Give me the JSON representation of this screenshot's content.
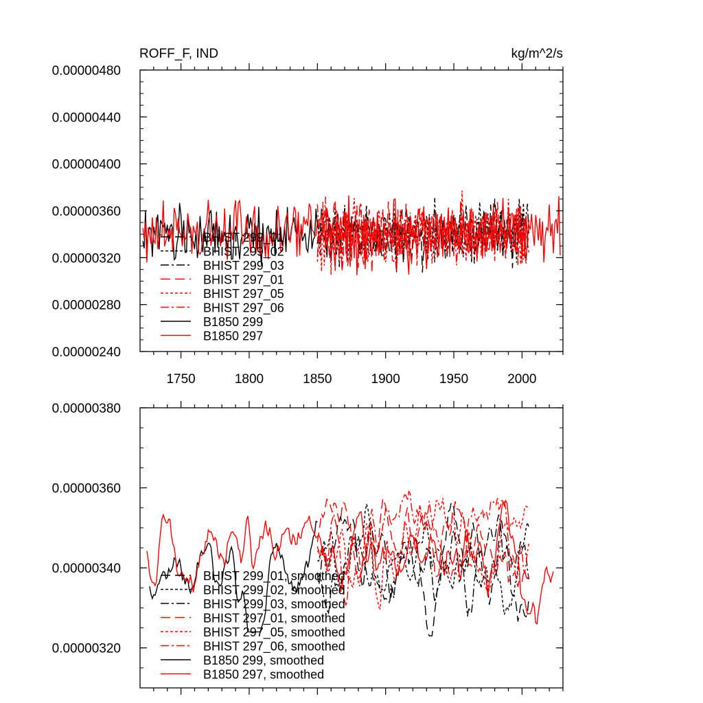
{
  "chart_data": [
    {
      "type": "line",
      "title": "ROFF_F, IND",
      "units": "kg/m^2/s",
      "xlabel": "",
      "ylabel": "",
      "xlim": [
        1720,
        2030
      ],
      "ylim": [
        2.4e-06,
        4.8e-06
      ],
      "x_ticks": [
        "1750",
        "1800",
        "1850",
        "1900",
        "1950",
        "2000"
      ],
      "y_ticks": [
        "0.00000240",
        "0.00000280",
        "0.00000320",
        "0.00000360",
        "0.00000400",
        "0.00000440",
        "0.00000480"
      ],
      "grid": false,
      "legend_position": "lower-left",
      "series": [
        {
          "name": "BHIST 299_01",
          "x_range": [
            1850,
            2005
          ],
          "mean": 3.4e-06,
          "amp": 3.6e-07,
          "seed": 11,
          "color": "#000000",
          "dash": "14,7"
        },
        {
          "name": "BHIST 299_02",
          "x_range": [
            1850,
            2005
          ],
          "mean": 3.4e-06,
          "amp": 3.6e-07,
          "seed": 12,
          "color": "#000000",
          "dash": "4,3"
        },
        {
          "name": "BHIST 299_03",
          "x_range": [
            1850,
            2005
          ],
          "mean": 3.4e-06,
          "amp": 3.6e-07,
          "seed": 13,
          "color": "#000000",
          "dash": "12,4,3,4"
        },
        {
          "name": "BHIST 297_01",
          "x_range": [
            1850,
            2005
          ],
          "mean": 3.4e-06,
          "amp": 4e-07,
          "seed": 21,
          "color": "#ff0000",
          "dash": "14,7"
        },
        {
          "name": "BHIST 297_05",
          "x_range": [
            1850,
            2005
          ],
          "mean": 3.4e-06,
          "amp": 4e-07,
          "seed": 22,
          "color": "#ff0000",
          "dash": "4,3"
        },
        {
          "name": "BHIST 297_06",
          "x_range": [
            1850,
            2005
          ],
          "mean": 3.4e-06,
          "amp": 4e-07,
          "seed": 23,
          "color": "#ff0000",
          "dash": "12,4,3,4"
        },
        {
          "name": "B1850 299",
          "x_range": [
            1722,
            1850
          ],
          "mean": 3.4e-06,
          "amp": 3.3e-07,
          "seed": 31,
          "color": "#000000",
          "dash": ""
        },
        {
          "name": "B1850 297",
          "x_range": [
            1722,
            2028
          ],
          "mean": 3.4e-06,
          "amp": 4e-07,
          "seed": 41,
          "color": "#ff0000",
          "dash": ""
        }
      ]
    },
    {
      "type": "line",
      "title": "",
      "xlabel": "",
      "ylabel": "",
      "xlim": [
        1720,
        2030
      ],
      "ylim": [
        3.1e-06,
        3.8e-06
      ],
      "y_ticks": [
        "0.00000320",
        "0.00000340",
        "0.00000360",
        "0.00000380"
      ],
      "grid": false,
      "legend_position": "lower-left",
      "series": [
        {
          "name": "BHIST 299_01, smoothed",
          "x_range": [
            1850,
            2005
          ],
          "mean": 3.4e-06,
          "amp": 1.7e-07,
          "seed": 51,
          "color": "#000000",
          "dash": "14,7"
        },
        {
          "name": "BHIST 299_02, smoothed",
          "x_range": [
            1850,
            2005
          ],
          "mean": 3.4e-06,
          "amp": 1.7e-07,
          "seed": 52,
          "color": "#000000",
          "dash": "4,3"
        },
        {
          "name": "BHIST 299_03, smoothed",
          "x_range": [
            1850,
            2005
          ],
          "mean": 3.4e-06,
          "amp": 1.7e-07,
          "seed": 53,
          "color": "#000000",
          "dash": "12,4,3,4"
        },
        {
          "name": "BHIST 297_01, smoothed",
          "x_range": [
            1850,
            2005
          ],
          "mean": 3.46e-06,
          "amp": 1.7e-07,
          "seed": 61,
          "color": "#ff0000",
          "dash": "14,7"
        },
        {
          "name": "BHIST 297_05, smoothed",
          "x_range": [
            1850,
            2005
          ],
          "mean": 3.44e-06,
          "amp": 1.7e-07,
          "seed": 62,
          "color": "#ff0000",
          "dash": "4,3"
        },
        {
          "name": "BHIST 297_06, smoothed",
          "x_range": [
            1850,
            2005
          ],
          "mean": 3.46e-06,
          "amp": 1.7e-07,
          "seed": 63,
          "color": "#ff0000",
          "dash": "12,4,3,4"
        },
        {
          "name": "B1850 299, smoothed",
          "x_range": [
            1727,
            1850
          ],
          "mean": 3.4e-06,
          "amp": 1.6e-07,
          "seed": 71,
          "color": "#000000",
          "dash": ""
        },
        {
          "name": "B1850 297, smoothed",
          "x_range": [
            1725,
            2023
          ],
          "mean": 3.44e-06,
          "amp": 1.8e-07,
          "seed": 81,
          "color": "#ff0000",
          "dash": ""
        }
      ]
    }
  ]
}
